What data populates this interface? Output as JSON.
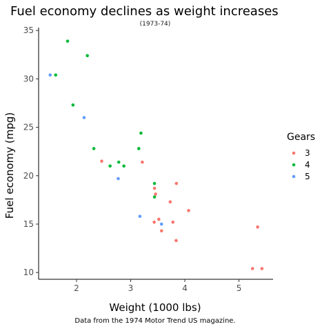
{
  "chart_data": {
    "type": "scatter",
    "title": "Fuel economy declines as weight increases",
    "subtitle": "(1973-74)",
    "caption": "Data from the 1974 Motor Trend US magazine.",
    "xlabel": "Weight (1000 lbs)",
    "ylabel": "Fuel economy (mpg)",
    "xlim": [
      1.3,
      5.63
    ],
    "ylim": [
      9.3,
      35.3
    ],
    "x_ticks": [
      2,
      3,
      4,
      5
    ],
    "y_ticks": [
      10,
      15,
      20,
      25,
      30,
      35
    ],
    "grid": false,
    "legend_position": "right",
    "legend_title": "Gears",
    "series": [
      {
        "name": "3",
        "color": "#f8766d",
        "points": [
          [
            2.465,
            21.5
          ],
          [
            3.215,
            21.4
          ],
          [
            3.44,
            18.7
          ],
          [
            3.46,
            18.1
          ],
          [
            3.57,
            14.3
          ],
          [
            4.07,
            16.4
          ],
          [
            3.73,
            17.3
          ],
          [
            3.78,
            15.2
          ],
          [
            5.25,
            10.4
          ],
          [
            5.424,
            10.4
          ],
          [
            5.345,
            14.7
          ],
          [
            3.52,
            15.5
          ],
          [
            3.435,
            15.2
          ],
          [
            3.84,
            13.3
          ],
          [
            3.845,
            19.2
          ]
        ]
      },
      {
        "name": "4",
        "color": "#00ba38",
        "points": [
          [
            2.62,
            21.0
          ],
          [
            2.875,
            21.0
          ],
          [
            2.32,
            22.8
          ],
          [
            3.19,
            24.4
          ],
          [
            3.15,
            22.8
          ],
          [
            3.44,
            19.2
          ],
          [
            3.44,
            17.8
          ],
          [
            2.2,
            32.4
          ],
          [
            1.615,
            30.4
          ],
          [
            1.835,
            33.9
          ],
          [
            1.935,
            27.3
          ],
          [
            2.78,
            21.4
          ]
        ]
      },
      {
        "name": "5",
        "color": "#619cff",
        "points": [
          [
            2.14,
            26.0
          ],
          [
            1.513,
            30.4
          ],
          [
            3.17,
            15.8
          ],
          [
            2.77,
            19.7
          ],
          [
            3.57,
            15.0
          ]
        ]
      }
    ]
  }
}
